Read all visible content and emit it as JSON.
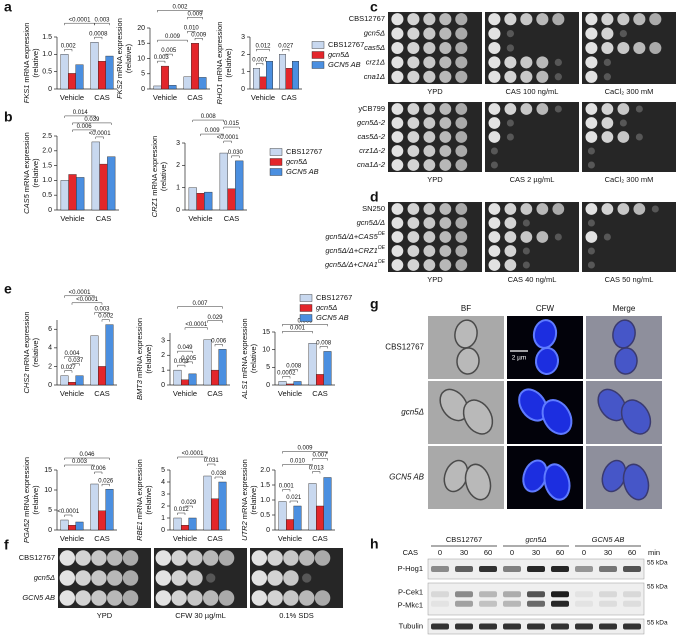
{
  "chart_data": [
    {
      "type": "bar",
      "label": "a",
      "categories": [
        "Vehicle",
        "CAS"
      ],
      "ylabel": "mRNA expression",
      "ylabel_unit": "(relative)",
      "series": [
        {
          "name": "CBS12767",
          "color": "#c8d8ef"
        },
        {
          "name": "gcn5Δ",
          "color": "#e3262b"
        },
        {
          "name": "GCN5 AB",
          "color": "#4b8fe0"
        }
      ],
      "charts": [
        {
          "gene": "FKS1",
          "values": [
            [
              1.0,
              1.35
            ],
            [
              0.45,
              0.8
            ],
            [
              0.7,
              0.95
            ]
          ],
          "ylim": [
            0,
            1.5
          ],
          "yticks": [
            0,
            0.5,
            {
              "value": 1,
              "label": "1.0"
            },
            1.5
          ],
          "annotations": [
            "<0.0001",
            "0.003",
            "0.002",
            "0.0008"
          ]
        },
        {
          "gene": "FKS2",
          "values": [
            [
              1.0,
              4.0
            ],
            [
              7.5,
              15
            ],
            [
              1.2,
              3.8
            ]
          ],
          "ylim": [
            0,
            20
          ],
          "yticks": [
            0,
            5,
            10,
            15,
            20
          ],
          "annotations": [
            "0.002",
            "0.009",
            "0.009",
            "0.010",
            "0.009",
            "0.005",
            "0.003"
          ]
        },
        {
          "gene": "RHO1",
          "values": [
            [
              1.2,
              2.0
            ],
            [
              0.7,
              1.2
            ],
            [
              1.6,
              1.6
            ]
          ],
          "ylim": [
            0,
            3
          ],
          "yticks": [
            0,
            1,
            2,
            3
          ],
          "annotations": [
            "0.012",
            "0.027",
            "0.007"
          ]
        }
      ]
    },
    {
      "type": "bar",
      "label": "b",
      "categories": [
        "Vehicle",
        "CAS"
      ],
      "ylabel": "mRNA expression",
      "ylabel_unit": "(relative)",
      "series": [
        {
          "name": "CBS12767",
          "color": "#c8d8ef"
        },
        {
          "name": "gcn5Δ",
          "color": "#e3262b"
        },
        {
          "name": "GCN5 AB",
          "color": "#4b8fe0"
        }
      ],
      "charts": [
        {
          "gene": "CAS5",
          "values": [
            [
              1.0,
              2.3
            ],
            [
              1.2,
              1.55
            ],
            [
              1.1,
              1.8
            ]
          ],
          "ylim": [
            0,
            2.5
          ],
          "yticks": [
            0,
            0.5,
            {
              "value": 1,
              "label": "1.0"
            },
            1.5,
            {
              "value": 2,
              "label": "2.0"
            },
            2.5
          ],
          "annotations": [
            "0.014",
            "0.039",
            "0.006",
            "<0.0001"
          ]
        },
        {
          "gene": "CRZ1",
          "values": [
            [
              1.0,
              2.55
            ],
            [
              0.75,
              0.95
            ],
            [
              0.8,
              2.2
            ]
          ],
          "ylim": [
            0,
            3
          ],
          "yticks": [
            0,
            1,
            2,
            3
          ],
          "annotations": [
            "0.008",
            "0.015",
            "0.009",
            "<0.0001",
            "0.030"
          ]
        }
      ]
    },
    {
      "type": "bar",
      "label": "e",
      "categories": [
        "Vehicle",
        "CAS"
      ],
      "ylabel": "mRNA expression",
      "ylabel_unit": "(relative)",
      "series": [
        {
          "name": "CBS12767",
          "color": "#c8d8ef"
        },
        {
          "name": "gcn5Δ",
          "color": "#e3262b"
        },
        {
          "name": "GCN5 AB",
          "color": "#4b8fe0"
        }
      ],
      "charts": [
        {
          "gene": "CHS2",
          "values": [
            [
              1.0,
              5.3
            ],
            [
              0.3,
              2.0
            ],
            [
              1.0,
              6.5
            ]
          ],
          "ylim": [
            0,
            7
          ],
          "yticks": [
            0,
            2,
            4,
            6
          ],
          "annotations": [
            "<0.0001",
            "<0.0001",
            "0.004",
            "0.003",
            "0.002",
            "0.037",
            "0.027"
          ]
        },
        {
          "gene": "BMT3",
          "values": [
            [
              1.0,
              3.05
            ],
            [
              0.35,
              1.0
            ],
            [
              0.75,
              2.4
            ]
          ],
          "ylim": [
            0,
            3.5
          ],
          "yticks": [
            0,
            1,
            2,
            3
          ],
          "annotations": [
            "0.007",
            "0.029",
            "<0.0001",
            "0.006",
            "0.005",
            "0.049",
            "0.003"
          ]
        },
        {
          "gene": "ALS1",
          "values": [
            [
              1.0,
              11.8
            ],
            [
              0.3,
              3.0
            ],
            [
              1.0,
              9.5
            ]
          ],
          "ylim": [
            0,
            15
          ],
          "yticks": [
            0,
            5,
            10,
            15
          ],
          "annotations": [
            "0.009",
            "0.001",
            "0.008",
            "0.008",
            "0.0002"
          ]
        },
        {
          "gene": "PGA52",
          "values": [
            [
              2.5,
              11.5
            ],
            [
              1.2,
              4.8
            ],
            [
              2.0,
              10.2
            ]
          ],
          "ylim": [
            0,
            15
          ],
          "yticks": [
            0,
            5,
            10,
            15
          ],
          "annotations": [
            "0.046",
            "0.003",
            "0.006",
            "<0.0001",
            "0.026"
          ]
        },
        {
          "gene": "RBE1",
          "values": [
            [
              1.0,
              4.5
            ],
            [
              0.4,
              2.6
            ],
            [
              1.0,
              4.0
            ]
          ],
          "ylim": [
            0,
            5
          ],
          "yticks": [
            0,
            1,
            2,
            3,
            4,
            5
          ],
          "annotations": [
            "<0.0001",
            "0.031",
            "0.038",
            "0.029",
            "0.012"
          ]
        },
        {
          "gene": "UTR2",
          "values": [
            [
              0.95,
              1.55
            ],
            [
              0.35,
              0.8
            ],
            [
              0.8,
              1.75
            ]
          ],
          "ylim": [
            0,
            2
          ],
          "yticks": [
            0,
            0.5,
            {
              "value": 1,
              "label": "1.0"
            },
            1.5,
            {
              "value": 2,
              "label": "2.0"
            }
          ],
          "annotations": [
            "0.009",
            "0.010",
            "0.007",
            "0.013",
            "0.001",
            "0.021"
          ]
        }
      ]
    }
  ],
  "spot_assays": [
    {
      "label": "c",
      "blocks": [
        {
          "strains": [
            "CBS12767",
            "gcn5Δ",
            "cas5Δ",
            "crz1Δ",
            "cna1Δ"
          ],
          "conditions": [
            "YPD",
            "CAS 100 ng/mL",
            "CaCl₂ 300 mM"
          ]
        },
        {
          "strains": [
            "yCB799",
            "gcn5Δ-2",
            "cas5Δ-2",
            "crz1Δ-2",
            "cna1Δ-2"
          ],
          "conditions": [
            "YPD",
            "CAS 2 µg/mL",
            "CaCl₂ 300 mM"
          ]
        }
      ]
    },
    {
      "label": "d",
      "blocks": [
        {
          "strains": [
            "SN250",
            "gcn5Δ/Δ",
            {
              "text": "gcn5Δ/Δ+CAS5",
              "sup": "OE"
            },
            {
              "text": "gcn5Δ/Δ+CRZ1",
              "sup": "OE"
            },
            {
              "text": "gcn5Δ/Δ+CNA1",
              "sup": "OE"
            }
          ],
          "conditions": [
            "YPD",
            "CAS 40 ng/mL",
            "CAS 50 ng/mL"
          ]
        }
      ]
    },
    {
      "label": "f",
      "blocks": [
        {
          "strains": [
            "CBS12767",
            "gcn5Δ",
            "GCN5 AB"
          ],
          "conditions": [
            "YPD",
            "CFW 30 µg/mL",
            "0.1% SDS"
          ]
        }
      ]
    }
  ],
  "microscopy": {
    "label": "g",
    "columns": [
      "BF",
      "CFW",
      "Merge"
    ],
    "rows": [
      "CBS12767",
      "gcn5Δ",
      "GCN5 AB"
    ],
    "scale_bar": "2 µm"
  },
  "western_blot": {
    "label": "h",
    "treatment": "CAS",
    "times": [
      0,
      30,
      60
    ],
    "time_unit": "min",
    "groups": [
      "CBS12767",
      "gcn5Δ",
      "GCN5 AB"
    ],
    "rows": [
      "P-Hog1",
      "P-Cek1",
      "P-Mkc1",
      "Tubulin"
    ],
    "size_markers": [
      "55 kDa",
      "55 kDa",
      "55 kDa"
    ]
  }
}
